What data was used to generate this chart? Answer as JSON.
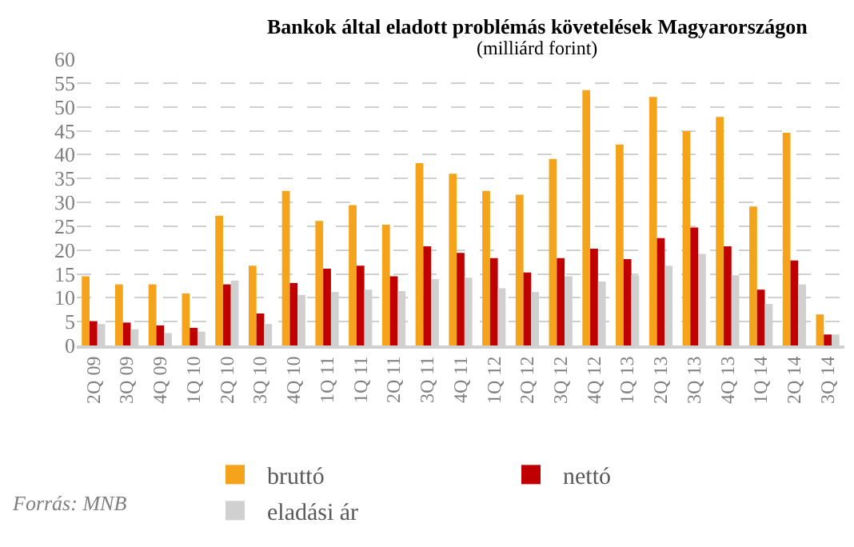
{
  "chart_data": {
    "type": "bar",
    "title": "Bankok által eladott problémás követelések Magyarországon",
    "subtitle": "(milliárd forint)",
    "categories": [
      "2Q 09",
      "3Q 09",
      "4Q 09",
      "1Q 10",
      "2Q 10",
      "3Q 10",
      "4Q 10",
      "1Q 11",
      "1Q 11",
      "2Q 11",
      "3Q 11",
      "4Q 11",
      "1Q 12",
      "2Q 12",
      "3Q 12",
      "4Q 12",
      "1Q 13",
      "2Q 13",
      "3Q 13",
      "4Q 13",
      "1Q 14",
      "2Q 14",
      "3Q 14"
    ],
    "series": [
      {
        "name": "bruttó",
        "color": "#f5a31a",
        "values": [
          14.5,
          12.8,
          12.8,
          10.9,
          27.2,
          16.7,
          32.4,
          26.1,
          29.4,
          25.3,
          38.2,
          36.0,
          32.4,
          31.6,
          39.1,
          53.5,
          42.1,
          52.1,
          44.9,
          47.9,
          29.1,
          44.6,
          6.5
        ]
      },
      {
        "name": "nettó",
        "color": "#c00000",
        "values": [
          5.1,
          4.8,
          4.2,
          3.7,
          12.8,
          6.7,
          13.1,
          16.1,
          16.7,
          14.5,
          20.8,
          19.4,
          18.3,
          15.3,
          18.3,
          20.3,
          18.1,
          22.5,
          24.7,
          20.8,
          11.7,
          17.8,
          2.3
        ]
      },
      {
        "name": "eladási ár",
        "color": "#d0d0d0",
        "values": [
          4.5,
          3.4,
          2.6,
          2.9,
          13.6,
          4.5,
          10.6,
          11.2,
          11.7,
          11.4,
          13.9,
          14.2,
          12.0,
          11.2,
          14.5,
          13.4,
          14.7,
          16.7,
          19.2,
          14.7,
          8.7,
          12.8,
          2.3
        ]
      }
    ],
    "ylim": [
      0,
      60
    ],
    "yticks": [
      0,
      5,
      10,
      15,
      20,
      25,
      30,
      35,
      40,
      45,
      50,
      55,
      60
    ],
    "grid": "y",
    "legend": "bottom",
    "annotations": [
      "Forrás: MNB"
    ]
  }
}
